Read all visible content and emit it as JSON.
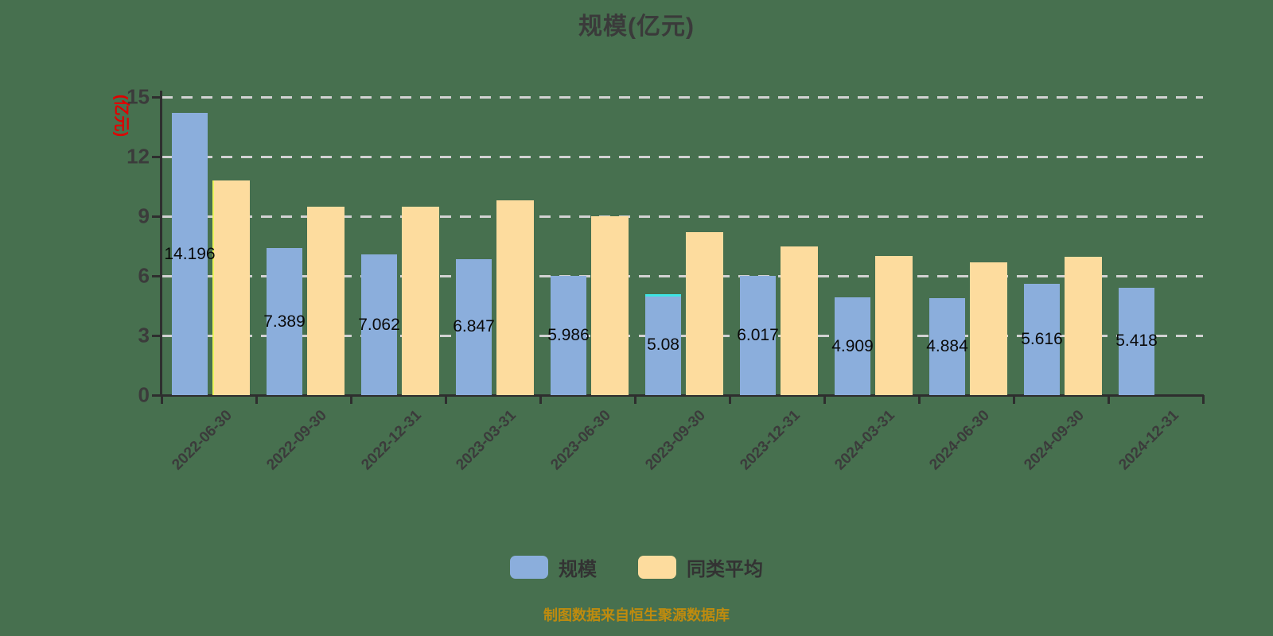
{
  "title": "规模(亿元)",
  "y_axis": {
    "unit_label": "(亿元)",
    "unit_color": "#e00000",
    "ticks": [
      0,
      3,
      6,
      9,
      12,
      15
    ]
  },
  "legend": [
    {
      "label": "规模",
      "color": "#8BAEDC"
    },
    {
      "label": "同类平均",
      "color": "#FDDC9E"
    }
  ],
  "footer": {
    "text": "制图数据来自恒生聚源数据库",
    "color": "#bf8b0e"
  },
  "chart_data": {
    "type": "bar",
    "title": "规模(亿元)",
    "ylabel": "(亿元)",
    "ylim": [
      0,
      15
    ],
    "grid": "dashed-horizontal",
    "legend_position": "bottom",
    "categories": [
      "2022-06-30",
      "2022-09-30",
      "2022-12-31",
      "2023-03-31",
      "2023-06-30",
      "2023-09-30",
      "2023-12-31",
      "2024-03-31",
      "2024-06-30",
      "2024-09-30",
      "2024-12-31"
    ],
    "series": [
      {
        "name": "规模",
        "color": "#8BAEDC",
        "values": [
          14.196,
          7.389,
          7.062,
          6.847,
          5.986,
          5.08,
          6.017,
          4.909,
          4.884,
          5.616,
          5.418
        ],
        "labels": [
          "14.196",
          "7.389",
          "7.062",
          "6.847",
          "5.986",
          "5.08",
          "6.017",
          "4.909",
          "4.884",
          "5.616",
          "5.418"
        ]
      },
      {
        "name": "同类平均",
        "color": "#FDDC9E",
        "values": [
          10.8,
          9.5,
          9.5,
          9.8,
          9.0,
          8.2,
          7.5,
          7.0,
          6.7,
          6.95,
          null
        ],
        "labels": []
      }
    ],
    "accents": [
      {
        "series": 0,
        "index": 5,
        "edge": "top",
        "color": "#3fe3e3"
      },
      {
        "series": 1,
        "index": 0,
        "edge": "left",
        "color": "#e9f35b"
      }
    ]
  },
  "colors": {
    "background": "#47704F",
    "gridline": "#d2d2d2",
    "axis": "#2e2e2e",
    "tick_text": "#3b3b3b",
    "title_text": "#3a3a3a",
    "data_label": "#0a0a0a"
  }
}
